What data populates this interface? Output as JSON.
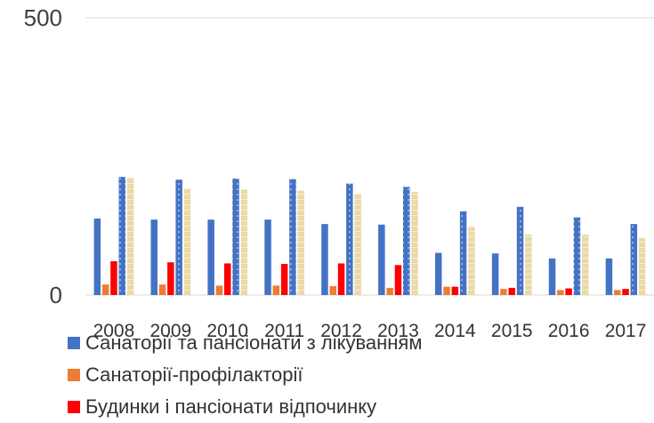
{
  "chart_data": {
    "type": "bar",
    "categories": [
      "2008",
      "2009",
      "2010",
      "2011",
      "2012",
      "2013",
      "2014",
      "2015",
      "2016",
      "2017"
    ],
    "series": [
      {
        "name": "Санаторії та пансіонати з лікуванням",
        "color": "#4472C4",
        "values": [
          138,
          136,
          136,
          136,
          128,
          127,
          76,
          75,
          66,
          66
        ]
      },
      {
        "name": "Санаторії-профілакторії",
        "color": "#ED7D31",
        "values": [
          19,
          19,
          17,
          17,
          16,
          13,
          15,
          11,
          9,
          9
        ]
      },
      {
        "name": "Будинки і пансіонати відпочинку",
        "color": "#FF0000",
        "values": [
          61,
          59,
          57,
          56,
          57,
          54,
          15,
          13,
          12,
          11
        ]
      },
      {
        "name": "",
        "color": "#4472C4",
        "pattern": "dotted",
        "values": [
          213,
          208,
          210,
          209,
          201,
          195,
          151,
          159,
          140,
          128
        ]
      },
      {
        "name": "",
        "color": "#E8D5A0",
        "values": [
          212,
          192,
          190,
          188,
          183,
          186,
          123,
          109,
          109,
          103
        ]
      }
    ],
    "yticks": [
      0,
      500
    ],
    "ylim": [
      0,
      500
    ],
    "grid": true,
    "legend_position": "bottom-left"
  },
  "legend": {
    "items": [
      {
        "label": "Санаторії та пансіонати з лікуванням",
        "color": "#4472C4"
      },
      {
        "label": "Санаторії-профілакторії",
        "color": "#ED7D31"
      },
      {
        "label": "Будинки і пансіонати відпочинку",
        "color": "#FF0000"
      }
    ]
  }
}
